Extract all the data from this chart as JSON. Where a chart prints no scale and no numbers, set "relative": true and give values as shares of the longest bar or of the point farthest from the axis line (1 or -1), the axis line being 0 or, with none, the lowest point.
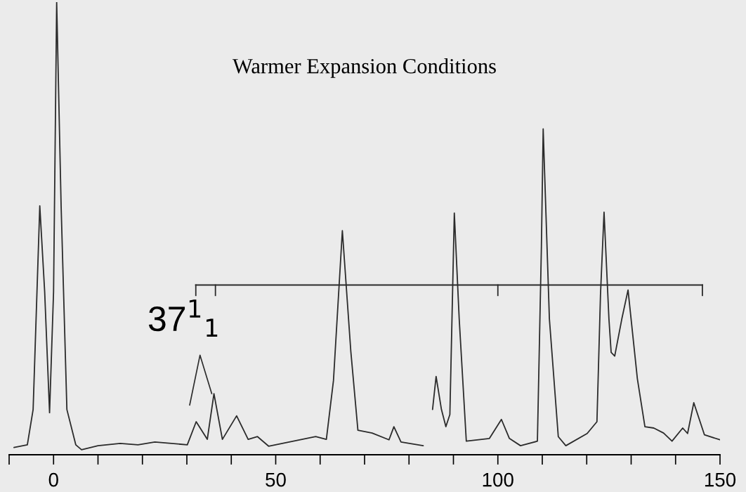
{
  "chart_data": {
    "type": "line",
    "title": "Warmer Expansion Conditions",
    "relative": true,
    "xlim": [
      -10,
      150
    ],
    "xticks": [
      {
        "value": -10,
        "label": null
      },
      0,
      {
        "value": 10,
        "label": null
      },
      {
        "value": 20,
        "label": null
      },
      {
        "value": 30,
        "label": null
      },
      {
        "value": 40,
        "label": null
      },
      50,
      {
        "value": 60,
        "label": null
      },
      {
        "value": 70,
        "label": null
      },
      {
        "value": 80,
        "label": null
      },
      {
        "value": 90,
        "label": null
      },
      100,
      {
        "value": 110,
        "label": null
      },
      {
        "value": 120,
        "label": null
      },
      {
        "value": 130,
        "label": null
      },
      {
        "value": 140,
        "label": null
      },
      150
    ],
    "series": [
      {
        "color": "#2b2b2b",
        "x": [
          -8.9,
          -5.9,
          -4.6,
          -3.1,
          -2.0,
          -0.9,
          0.0,
          0.7,
          1.7,
          3.0,
          5.0,
          6.3,
          10,
          15,
          19,
          22.8,
          30.1,
          32.1,
          34.6,
          36.1,
          38.0,
          41.2,
          43.8,
          45.9,
          48.4,
          59.0,
          61.4,
          63.0,
          65.0,
          66.9,
          68.5,
          71.7,
          75.5,
          76.6,
          78.2,
          83.2,
          84.5,
          85.3,
          86.1,
          87.3,
          88.3,
          89.2,
          90.2,
          91.3,
          92.9,
          98.1,
          100.8,
          102.6,
          105.1,
          108.9,
          109.8,
          110.2,
          111.6,
          113.6,
          115.3,
          120.1,
          122.3,
          123.1,
          123.9,
          125.0,
          125.5,
          126.3,
          127.9,
          129.3,
          131.4,
          133.1,
          135.1,
          137.3,
          139.2,
          141.6,
          142.7,
          144.1,
          146.5,
          150.0
        ],
        "values": [
          0.016,
          0.022,
          0.1,
          0.55,
          0.36,
          0.093,
          0.36,
          1.0,
          0.55,
          0.1,
          0.022,
          0.011,
          0.02,
          0.025,
          0.022,
          0.028,
          0.022,
          0.073,
          0.034,
          0.135,
          0.034,
          0.086,
          0.034,
          0.04,
          0.019,
          0.04,
          0.034,
          0.164,
          0.495,
          0.229,
          0.054,
          0.048,
          0.033,
          0.062,
          0.028,
          0.02,
          null,
          0.1,
          0.173,
          0.1,
          0.062,
          0.089,
          0.534,
          0.3,
          0.03,
          0.036,
          0.078,
          0.036,
          0.02,
          0.03,
          0.46,
          0.72,
          0.3,
          0.04,
          0.02,
          0.047,
          0.073,
          0.354,
          0.536,
          0.3,
          0.226,
          0.218,
          0.3,
          0.364,
          0.168,
          0.062,
          0.059,
          0.048,
          0.03,
          0.059,
          0.047,
          0.115,
          0.044,
          0.033
        ]
      }
    ],
    "annotations": [
      "37$^{1}$$_{1}$"
    ]
  }
}
